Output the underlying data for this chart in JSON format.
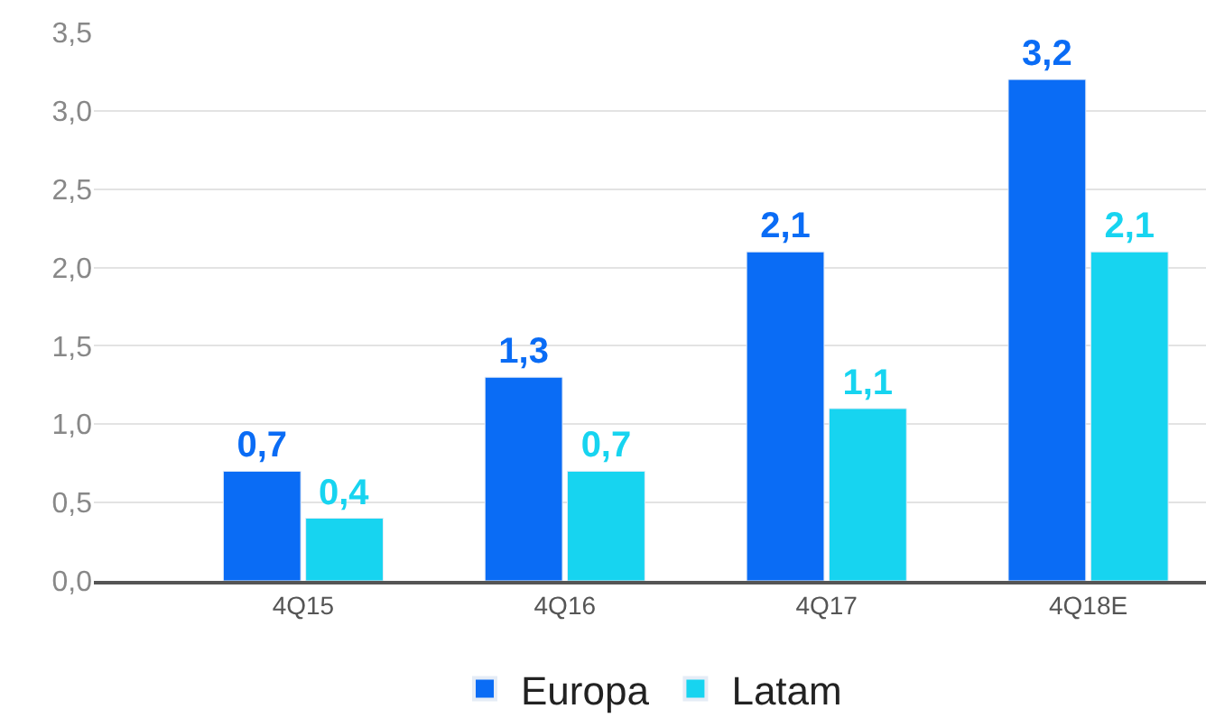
{
  "chart_data": {
    "type": "bar",
    "categories": [
      "4Q15",
      "4Q16",
      "4Q17",
      "4Q18E"
    ],
    "series": [
      {
        "name": "Europa",
        "color": "#0a6cf5",
        "values": [
          0.7,
          1.3,
          2.1,
          3.2
        ],
        "value_labels": [
          "0,7",
          "1,3",
          "2,1",
          "3,2"
        ]
      },
      {
        "name": "Latam",
        "color": "#17d4f0",
        "values": [
          0.4,
          0.7,
          1.1,
          2.1
        ],
        "value_labels": [
          "0,4",
          "0,7",
          "1,1",
          "2,1"
        ]
      }
    ],
    "ylim": [
      0,
      3.5
    ],
    "yticks": [
      {
        "value": 0,
        "label": "0,0"
      },
      {
        "value": 0.5,
        "label": "0,5"
      },
      {
        "value": 1,
        "label": "1,0"
      },
      {
        "value": 1.5,
        "label": "1,5"
      },
      {
        "value": 2,
        "label": "2,0"
      },
      {
        "value": 2.5,
        "label": "2,5"
      },
      {
        "value": 3,
        "label": "3,0"
      },
      {
        "value": 3.5,
        "label": "3,5"
      }
    ],
    "grid": "y",
    "legend": "bottom"
  }
}
